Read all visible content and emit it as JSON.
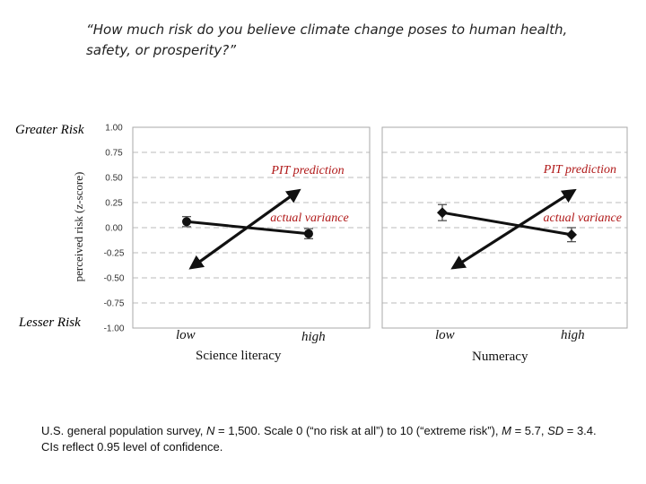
{
  "question": "“How much risk do you believe climate change poses to human health, safety, or prosperity?”",
  "greater_label": "Greater Risk",
  "lesser_label": "Lesser Risk",
  "footnote_parts": {
    "a": "U.S. general population survey, ",
    "n_sym": "N",
    "b": " = 1,500. Scale 0 (“no risk at all”) to 10 (“extreme risk”), ",
    "m_sym": "M",
    "c": " = 5.7, ",
    "sd_sym": "SD",
    "d": " = 3.4. CIs reflect 0.95 level of confidence."
  },
  "chart_data": [
    {
      "type": "line",
      "ylabel": "perceived risk (z-score)",
      "xlabel": "Science literacy",
      "categories": [
        "low",
        "high"
      ],
      "ylim": [
        -1.0,
        1.0
      ],
      "yticks": [
        "1.00",
        "0.75",
        "0.50",
        "0.25",
        "0.00",
        "-0.25",
        "-0.50",
        "-0.75",
        "-1.00"
      ],
      "grid": true,
      "series": [
        {
          "name": "actual variance",
          "values": [
            0.06,
            -0.06
          ],
          "ci": [
            0.05,
            0.05
          ],
          "marker": "circle"
        },
        {
          "name": "PIT prediction",
          "values": [
            -0.4,
            0.37
          ],
          "arrow": "both"
        }
      ],
      "annotations": [
        "PIT prediction",
        "actual variance"
      ]
    },
    {
      "type": "line",
      "ylabel": "",
      "xlabel": "Numeracy",
      "categories": [
        "low",
        "high"
      ],
      "ylim": [
        -1.0,
        1.0
      ],
      "grid": true,
      "series": [
        {
          "name": "actual variance",
          "values": [
            0.15,
            -0.07
          ],
          "ci": [
            0.08,
            0.07
          ],
          "marker": "diamond"
        },
        {
          "name": "PIT prediction",
          "values": [
            -0.4,
            0.37
          ],
          "arrow": "both"
        }
      ],
      "annotations": [
        "PIT prediction",
        "actual variance"
      ]
    }
  ],
  "colors": {
    "line": "#111111",
    "annot": "#b01818",
    "grid": "#bbbbbb",
    "axis": "#aaaaaa"
  }
}
